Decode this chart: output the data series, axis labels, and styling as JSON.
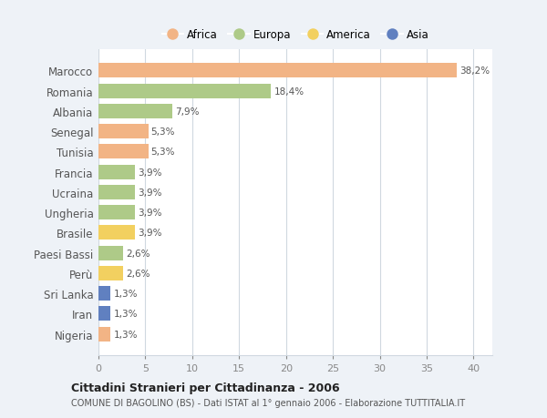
{
  "countries": [
    "Marocco",
    "Romania",
    "Albania",
    "Senegal",
    "Tunisia",
    "Francia",
    "Ucraina",
    "Ungheria",
    "Brasile",
    "Paesi Bassi",
    "Perù",
    "Sri Lanka",
    "Iran",
    "Nigeria"
  ],
  "values": [
    38.2,
    18.4,
    7.9,
    5.3,
    5.3,
    3.9,
    3.9,
    3.9,
    3.9,
    2.6,
    2.6,
    1.3,
    1.3,
    1.3
  ],
  "continents": [
    "Africa",
    "Europa",
    "Europa",
    "Africa",
    "Africa",
    "Europa",
    "Europa",
    "Europa",
    "America",
    "Europa",
    "America",
    "Asia",
    "Asia",
    "Africa"
  ],
  "colors": {
    "Africa": "#F2B485",
    "Europa": "#AECA88",
    "America": "#F2D060",
    "Asia": "#6080C0"
  },
  "legend_order": [
    "Africa",
    "Europa",
    "America",
    "Asia"
  ],
  "xlim": [
    0,
    42
  ],
  "xticks": [
    0,
    5,
    10,
    15,
    20,
    25,
    30,
    35,
    40
  ],
  "title": "Cittadini Stranieri per Cittadinanza - 2006",
  "subtitle": "COMUNE DI BAGOLINO (BS) - Dati ISTAT al 1° gennaio 2006 - Elaborazione TUTTITALIA.IT",
  "background_color": "#eef2f7",
  "bar_background": "#ffffff",
  "grid_color": "#d0d8e0"
}
